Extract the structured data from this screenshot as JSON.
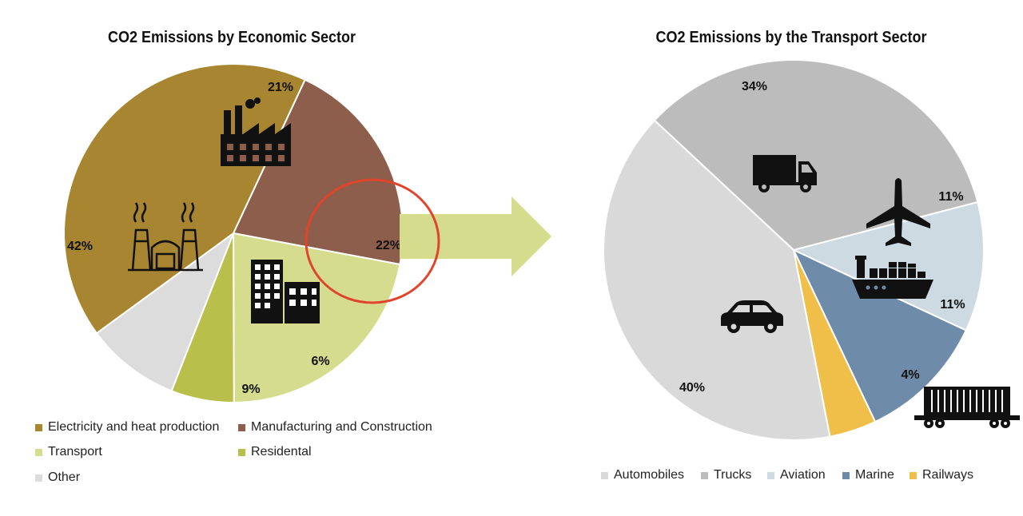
{
  "chart_data": [
    {
      "type": "pie",
      "title": "CO2 Emissions by Economic Sector",
      "categories": [
        "Manufacturing and Construction",
        "Transport",
        "Residental",
        "Other",
        "Electricity and heat production"
      ],
      "values": [
        21,
        22,
        6,
        9,
        42
      ],
      "labels": [
        "21%",
        "22%",
        "6%",
        "9%",
        "42%"
      ],
      "colors": [
        "#8c5e4b",
        "#d5dc8e",
        "#b8bf4a",
        "#dcdcdc",
        "#a88530"
      ],
      "legend": {
        "placement": "bottom",
        "entries": [
          {
            "name": "Electricity and heat production",
            "color": "#a88530"
          },
          {
            "name": "Manufacturing and Construction",
            "color": "#8c5e4b"
          },
          {
            "name": "Transport",
            "color": "#d5dc8e"
          },
          {
            "name": "Residental",
            "color": "#b8bf4a"
          },
          {
            "name": "Other",
            "color": "#dcdcdc"
          }
        ]
      },
      "icons": [
        "power-plant-icon",
        "factory-icon",
        "buildings-icon"
      ],
      "highlight": {
        "category": "Transport",
        "color": "#e0452b"
      }
    },
    {
      "type": "pie",
      "title": "CO2 Emissions by the Transport Sector",
      "categories": [
        "Trucks",
        "Aviation",
        "Marine",
        "Railways",
        "Automobiles"
      ],
      "values": [
        34,
        11,
        11,
        4,
        40
      ],
      "labels": [
        "34%",
        "11%",
        "11%",
        "4%",
        "40%"
      ],
      "colors": [
        "#bcbcbc",
        "#cddae1",
        "#6e8caa",
        "#f0bf4a",
        "#d9d9d9"
      ],
      "legend": {
        "placement": "bottom",
        "entries": [
          {
            "name": "Automobiles",
            "color": "#d9d9d9"
          },
          {
            "name": "Trucks",
            "color": "#bcbcbc"
          },
          {
            "name": "Aviation",
            "color": "#cddae1"
          },
          {
            "name": "Marine",
            "color": "#6e8caa"
          },
          {
            "name": "Railways",
            "color": "#f0bf4a"
          }
        ]
      },
      "icons": [
        "truck-icon",
        "airplane-icon",
        "cargo-ship-icon",
        "car-icon",
        "freight-railcar-icon"
      ]
    }
  ],
  "arrow": {
    "color": "#d5dc8e",
    "icon": "arrow-right-icon"
  }
}
